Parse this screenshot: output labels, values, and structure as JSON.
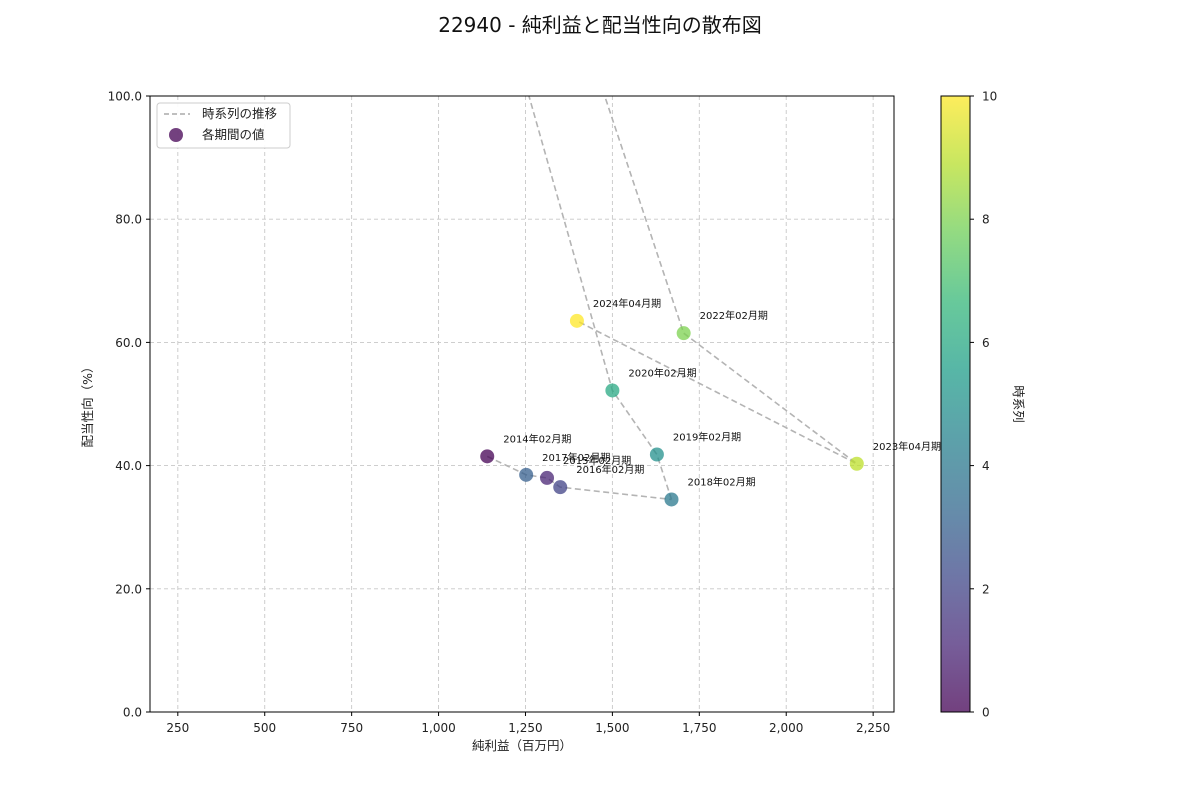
{
  "chart_data": {
    "type": "scatter",
    "title": "22940 - 純利益と配当性向の散布図",
    "xlabel": "純利益（百万円）",
    "ylabel": "配当性向（%）",
    "xlim": [
      170,
      2310
    ],
    "ylim": [
      0,
      100
    ],
    "xticks": [
      250,
      500,
      750,
      1000,
      1250,
      1500,
      1750,
      2000,
      2250
    ],
    "xtick_labels": [
      "250",
      "500",
      "750",
      "1,000",
      "1,250",
      "1,500",
      "1,750",
      "2,000",
      "2,250"
    ],
    "yticks": [
      0,
      20,
      40,
      60,
      80,
      100
    ],
    "ytick_labels": [
      "0.0",
      "20.0",
      "40.0",
      "60.0",
      "80.0",
      "100.0"
    ],
    "grid": true,
    "legend": {
      "placement": "top-left",
      "entries": [
        {
          "label": "時系列の推移",
          "kind": "line"
        },
        {
          "label": "各期間の値",
          "kind": "marker"
        }
      ]
    },
    "colorbar": {
      "label": "時系列",
      "min": 0,
      "max": 10,
      "ticks": [
        0,
        2,
        4,
        6,
        8,
        10
      ],
      "tick_labels": [
        "0",
        "2",
        "4",
        "6",
        "8",
        "10"
      ],
      "colormap": [
        "#440154",
        "#482878",
        "#3e4989",
        "#31688e",
        "#26828e",
        "#1f9e89",
        "#35b779",
        "#6ece58",
        "#b5de2b",
        "#fde725"
      ]
    },
    "path_segments": [
      {
        "x": [
          1140,
          1252,
          1312,
          1350,
          1670
        ],
        "y": [
          41.5,
          38.5,
          38.0,
          36.5,
          34.5
        ]
      },
      {
        "x": [
          1670,
          1628,
          1500,
          1255
        ],
        "y": [
          34.5,
          41.8,
          52.2,
          101
        ]
      },
      {
        "x": [
          1472,
          1705,
          2203,
          1398
        ],
        "y": [
          101,
          61.5,
          40.3,
          63.5
        ]
      }
    ],
    "points": [
      {
        "label": "2014年02月期",
        "x": 1140,
        "y": 41.5,
        "t": 0
      },
      {
        "label": "2015年02月期",
        "x": 1312,
        "y": 38.0,
        "t": 1
      },
      {
        "label": "2016年02月期",
        "x": 1350,
        "y": 36.5,
        "t": 2
      },
      {
        "label": "2017年02月期",
        "x": 1252,
        "y": 38.5,
        "t": 3
      },
      {
        "label": "2018年02月期",
        "x": 1670,
        "y": 34.5,
        "t": 4
      },
      {
        "label": "2019年02月期",
        "x": 1628,
        "y": 41.8,
        "t": 5
      },
      {
        "label": "2020年02月期",
        "x": 1500,
        "y": 52.2,
        "t": 6
      },
      {
        "label": "2022年02月期",
        "x": 1705,
        "y": 61.5,
        "t": 8
      },
      {
        "label": "2023年04月期",
        "x": 2203,
        "y": 40.3,
        "t": 9
      },
      {
        "label": "2024年04月期",
        "x": 1398,
        "y": 63.5,
        "t": 10
      }
    ]
  }
}
